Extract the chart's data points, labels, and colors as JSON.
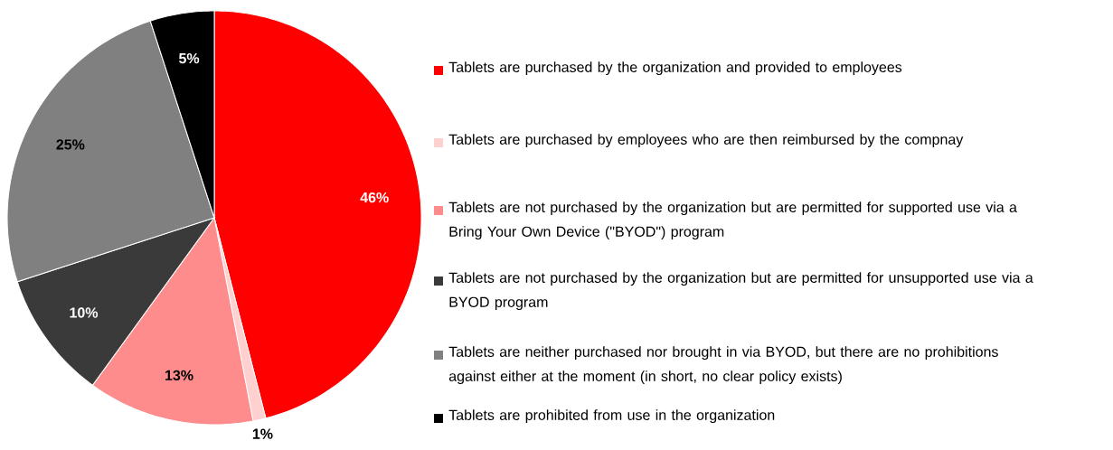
{
  "chart_data": {
    "type": "pie",
    "categories": [
      "Tablets are purchased by the organization and provided to employees",
      "Tablets are purchased by employees who are then reimbursed by the compnay",
      "Tablets are not purchased by the organization but are permitted for supported use via a Bring Your Own Device (\"BYOD\") program",
      "Tablets are not purchased by the organization but are permitted for unsupported use via a BYOD program",
      "Tablets are neither purchased nor brought in via BYOD, but there are no prohibitions against either at the moment (in short, no clear policy exists)",
      "Tablets are prohibited from use in the organization"
    ],
    "values": [
      46,
      1,
      13,
      10,
      25,
      5
    ],
    "value_labels": [
      "46%",
      "1%",
      "13%",
      "10%",
      "25%",
      "5%"
    ],
    "colors": [
      "#ff0000",
      "#ffd0d0",
      "#ff8c8c",
      "#3a3a3a",
      "#808080",
      "#000000"
    ],
    "legend": "right"
  }
}
